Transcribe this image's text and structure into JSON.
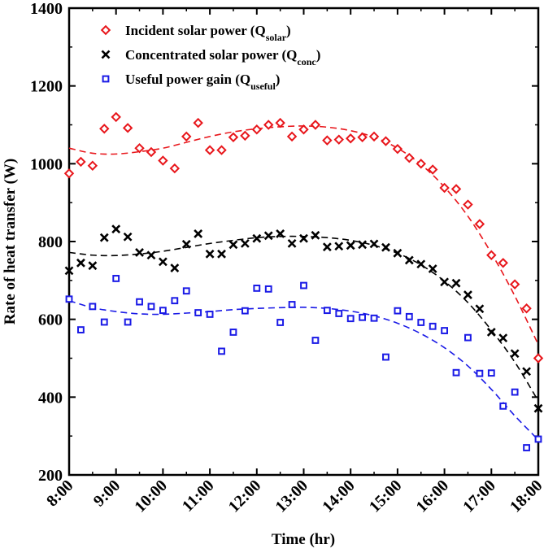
{
  "chart_data": {
    "type": "scatter",
    "xlabel": "Time (hr)",
    "ylabel": "Rate of heat transfer (W)",
    "xlim": [
      8,
      18
    ],
    "ylim": [
      200,
      1400
    ],
    "xticks": [
      {
        "value": 8,
        "label": "8:00"
      },
      {
        "value": 9,
        "label": "9:00"
      },
      {
        "value": 10,
        "label": "10:00"
      },
      {
        "value": 11,
        "label": "11:00"
      },
      {
        "value": 12,
        "label": "12:00"
      },
      {
        "value": 13,
        "label": "13:00"
      },
      {
        "value": 14,
        "label": "14:00"
      },
      {
        "value": 15,
        "label": "15:00"
      },
      {
        "value": 16,
        "label": "16:00"
      },
      {
        "value": 17,
        "label": "17:00"
      },
      {
        "value": 18,
        "label": "18:00"
      }
    ],
    "yticks": [
      {
        "value": 200,
        "label": "200"
      },
      {
        "value": 400,
        "label": "400"
      },
      {
        "value": 600,
        "label": "600"
      },
      {
        "value": 800,
        "label": "800"
      },
      {
        "value": 1000,
        "label": "1000"
      },
      {
        "value": 1200,
        "label": "1200"
      },
      {
        "value": 1400,
        "label": "1400"
      }
    ],
    "legend_position": "top-left",
    "series": [
      {
        "id": "solar",
        "name": "Incident solar power (Q",
        "subscript": "solar",
        "name_suffix": ")",
        "marker": "diamond",
        "color": "#e8161b",
        "trend": "dashed",
        "points": [
          [
            8.0,
            975
          ],
          [
            8.25,
            1005
          ],
          [
            8.5,
            995
          ],
          [
            8.75,
            1090
          ],
          [
            9.0,
            1120
          ],
          [
            9.25,
            1092
          ],
          [
            9.5,
            1040
          ],
          [
            9.75,
            1030
          ],
          [
            10.0,
            1008
          ],
          [
            10.25,
            988
          ],
          [
            10.5,
            1070
          ],
          [
            10.75,
            1105
          ],
          [
            11.0,
            1035
          ],
          [
            11.25,
            1035
          ],
          [
            11.5,
            1068
          ],
          [
            11.75,
            1072
          ],
          [
            12.0,
            1088
          ],
          [
            12.25,
            1100
          ],
          [
            12.5,
            1105
          ],
          [
            12.75,
            1070
          ],
          [
            13.0,
            1088
          ],
          [
            13.25,
            1100
          ],
          [
            13.5,
            1060
          ],
          [
            13.75,
            1062
          ],
          [
            14.0,
            1065
          ],
          [
            14.25,
            1068
          ],
          [
            14.5,
            1070
          ],
          [
            14.75,
            1058
          ],
          [
            15.0,
            1038
          ],
          [
            15.25,
            1015
          ],
          [
            15.5,
            1000
          ],
          [
            15.75,
            985
          ],
          [
            16.0,
            938
          ],
          [
            16.25,
            935
          ],
          [
            16.5,
            895
          ],
          [
            16.75,
            845
          ],
          [
            17.0,
            765
          ],
          [
            17.25,
            745
          ],
          [
            17.5,
            690
          ],
          [
            17.75,
            628
          ],
          [
            18.0,
            500
          ]
        ],
        "trend_points": [
          [
            8.0,
            1040
          ],
          [
            8.5,
            1027
          ],
          [
            9.0,
            1025
          ],
          [
            9.5,
            1031
          ],
          [
            10.0,
            1040
          ],
          [
            10.5,
            1055
          ],
          [
            11.0,
            1070
          ],
          [
            11.5,
            1082
          ],
          [
            12.0,
            1090
          ],
          [
            12.5,
            1095
          ],
          [
            13.0,
            1097
          ],
          [
            13.5,
            1094
          ],
          [
            14.0,
            1085
          ],
          [
            14.5,
            1068
          ],
          [
            15.0,
            1040
          ],
          [
            15.5,
            998
          ],
          [
            16.0,
            940
          ],
          [
            16.5,
            865
          ],
          [
            17.0,
            770
          ],
          [
            17.5,
            660
          ],
          [
            18.0,
            535
          ]
        ]
      },
      {
        "id": "conc",
        "name": "Concentrated solar power (Q",
        "subscript": "conc",
        "name_suffix": ")",
        "marker": "x",
        "color": "#000000",
        "trend": "dashed",
        "points": [
          [
            8.0,
            725
          ],
          [
            8.25,
            745
          ],
          [
            8.5,
            738
          ],
          [
            8.75,
            810
          ],
          [
            9.0,
            832
          ],
          [
            9.25,
            812
          ],
          [
            9.5,
            772
          ],
          [
            9.75,
            765
          ],
          [
            10.0,
            748
          ],
          [
            10.25,
            732
          ],
          [
            10.5,
            793
          ],
          [
            10.75,
            820
          ],
          [
            11.0,
            768
          ],
          [
            11.25,
            768
          ],
          [
            11.5,
            792
          ],
          [
            11.75,
            795
          ],
          [
            12.0,
            808
          ],
          [
            12.25,
            815
          ],
          [
            12.5,
            820
          ],
          [
            12.75,
            795
          ],
          [
            13.0,
            808
          ],
          [
            13.25,
            816
          ],
          [
            13.5,
            786
          ],
          [
            13.75,
            788
          ],
          [
            14.0,
            790
          ],
          [
            14.25,
            792
          ],
          [
            14.5,
            794
          ],
          [
            14.75,
            785
          ],
          [
            15.0,
            770
          ],
          [
            15.25,
            752
          ],
          [
            15.5,
            742
          ],
          [
            15.75,
            730
          ],
          [
            16.0,
            696
          ],
          [
            16.25,
            693
          ],
          [
            16.5,
            663
          ],
          [
            16.75,
            627
          ],
          [
            17.0,
            567
          ],
          [
            17.25,
            552
          ],
          [
            17.5,
            512
          ],
          [
            17.75,
            466
          ],
          [
            18.0,
            371
          ]
        ],
        "trend_points": [
          [
            8.0,
            772
          ],
          [
            8.5,
            765
          ],
          [
            9.0,
            764
          ],
          [
            9.5,
            768
          ],
          [
            10.0,
            775
          ],
          [
            10.5,
            785
          ],
          [
            11.0,
            795
          ],
          [
            11.5,
            803
          ],
          [
            12.0,
            810
          ],
          [
            12.5,
            813
          ],
          [
            13.0,
            813
          ],
          [
            13.5,
            810
          ],
          [
            14.0,
            803
          ],
          [
            14.5,
            790
          ],
          [
            15.0,
            770
          ],
          [
            15.5,
            740
          ],
          [
            16.0,
            698
          ],
          [
            16.5,
            643
          ],
          [
            17.0,
            572
          ],
          [
            17.5,
            490
          ],
          [
            18.0,
            390
          ]
        ]
      },
      {
        "id": "useful",
        "name": "Useful power gain (Q",
        "subscript": "useful",
        "name_suffix": ")",
        "marker": "square",
        "color": "#1a1ae6",
        "trend": "dashed",
        "points": [
          [
            8.0,
            652
          ],
          [
            8.25,
            573
          ],
          [
            8.5,
            633
          ],
          [
            8.75,
            593
          ],
          [
            9.0,
            705
          ],
          [
            9.25,
            593
          ],
          [
            9.5,
            645
          ],
          [
            9.75,
            633
          ],
          [
            10.0,
            623
          ],
          [
            10.25,
            648
          ],
          [
            10.5,
            673
          ],
          [
            10.75,
            617
          ],
          [
            11.0,
            613
          ],
          [
            11.25,
            518
          ],
          [
            11.5,
            567
          ],
          [
            11.75,
            622
          ],
          [
            12.0,
            680
          ],
          [
            12.25,
            678
          ],
          [
            12.5,
            592
          ],
          [
            12.75,
            638
          ],
          [
            13.0,
            687
          ],
          [
            13.25,
            546
          ],
          [
            13.5,
            623
          ],
          [
            13.75,
            615
          ],
          [
            14.0,
            602
          ],
          [
            14.25,
            605
          ],
          [
            14.5,
            603
          ],
          [
            14.75,
            503
          ],
          [
            15.0,
            622
          ],
          [
            15.25,
            607
          ],
          [
            15.5,
            592
          ],
          [
            15.75,
            582
          ],
          [
            16.0,
            571
          ],
          [
            16.25,
            463
          ],
          [
            16.5,
            553
          ],
          [
            16.75,
            461
          ],
          [
            17.0,
            462
          ],
          [
            17.25,
            377
          ],
          [
            17.5,
            413
          ],
          [
            17.75,
            270
          ],
          [
            18.0,
            292
          ]
        ],
        "trend_points": [
          [
            8.0,
            648
          ],
          [
            8.5,
            630
          ],
          [
            9.0,
            620
          ],
          [
            9.5,
            614
          ],
          [
            10.0,
            613
          ],
          [
            10.5,
            616
          ],
          [
            11.0,
            620
          ],
          [
            11.5,
            625
          ],
          [
            12.0,
            628
          ],
          [
            12.5,
            630
          ],
          [
            13.0,
            631
          ],
          [
            13.5,
            628
          ],
          [
            14.0,
            621
          ],
          [
            14.5,
            609
          ],
          [
            15.0,
            590
          ],
          [
            15.5,
            563
          ],
          [
            16.0,
            527
          ],
          [
            16.5,
            480
          ],
          [
            17.0,
            420
          ],
          [
            17.5,
            352
          ],
          [
            18.0,
            290
          ]
        ]
      }
    ]
  }
}
